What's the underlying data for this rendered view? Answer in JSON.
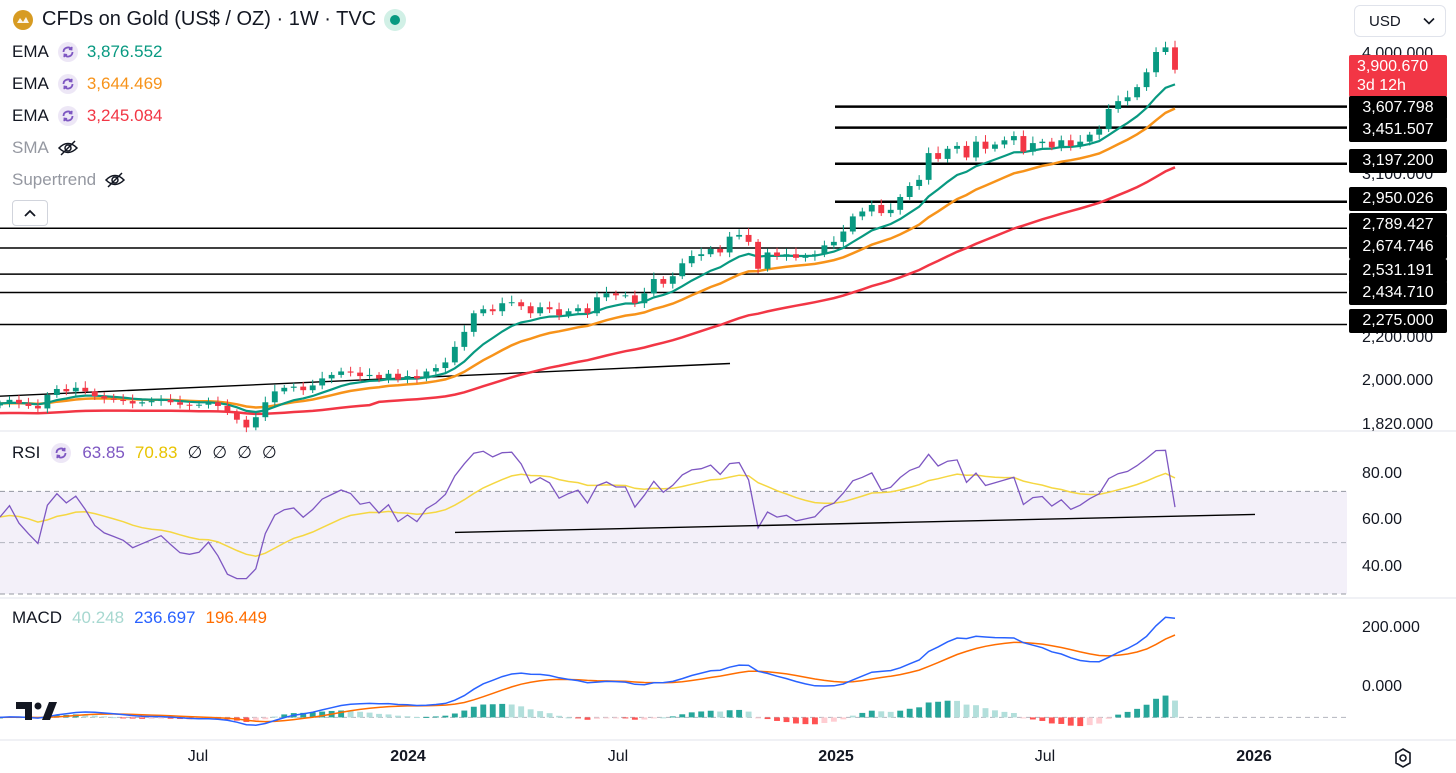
{
  "header": {
    "symbol_title": "CFDs on Gold (US$ / OZ) · 1W · TVC",
    "currency": "USD",
    "indicators": [
      {
        "name": "EMA",
        "value": "3,876.552",
        "color": "#089981",
        "visible": true
      },
      {
        "name": "EMA",
        "value": "3,644.469",
        "color": "#f7931a",
        "visible": true
      },
      {
        "name": "EMA",
        "value": "3,245.084",
        "color": "#f23645",
        "visible": true
      },
      {
        "name": "SMA",
        "visible": false
      },
      {
        "name": "Supertrend",
        "visible": false
      }
    ]
  },
  "price_axis": {
    "ticks": [
      "4,000.000",
      "3,100.000",
      "2,200.000",
      "2,000.000",
      "1,820.000"
    ],
    "last_price": "3,900.670",
    "countdown": "3d 12h",
    "level_tags": [
      "3,607.798",
      "3,451.507",
      "3,197.200",
      "2,950.026",
      "2,789.427",
      "2,674.746",
      "2,531.191",
      "2,434.710",
      "2,275.000"
    ]
  },
  "time_axis": {
    "labels": [
      {
        "text": "Jul",
        "bold": false
      },
      {
        "text": "2024",
        "bold": true
      },
      {
        "text": "Jul",
        "bold": false
      },
      {
        "text": "2025",
        "bold": true
      },
      {
        "text": "Jul",
        "bold": false
      },
      {
        "text": "2026",
        "bold": true
      }
    ]
  },
  "rsi": {
    "name": "RSI",
    "value": "63.85",
    "ma_value": "70.83",
    "extra": [
      "∅",
      "∅",
      "∅",
      "∅"
    ],
    "ticks": [
      "80.00",
      "60.00",
      "40.00"
    ]
  },
  "macd": {
    "name": "MACD",
    "histogram": "40.248",
    "macd_line": "236.697",
    "signal": "196.449",
    "ticks": [
      "200.000",
      "0.000"
    ]
  },
  "colors": {
    "up": "#089981",
    "down": "#f23645",
    "ema_short": "#089981",
    "ema_mid": "#f7931a",
    "ema_long": "#f23645",
    "rsi_line": "#7e57c2",
    "rsi_ma": "#f5d742",
    "macd_line": "#2962ff",
    "signal_line": "#ff6d00"
  },
  "chart_data": {
    "type": "candlestick",
    "title": "CFDs on Gold (US$ / OZ) · 1W · TVC",
    "interval": "1W",
    "price_range": [
      1820,
      4050
    ],
    "horizontal_levels": [
      3607.798,
      3451.507,
      3197.2,
      2950.026,
      2789.427,
      2674.746,
      2531.191,
      2434.71,
      2275.0
    ],
    "closes": [
      1925,
      1940,
      1925,
      1915,
      1905,
      1960,
      1985,
      1975,
      1990,
      1975,
      1955,
      1945,
      1940,
      1935,
      1925,
      1930,
      1935,
      1940,
      1930,
      1920,
      1918,
      1920,
      1930,
      1915,
      1890,
      1860,
      1830,
      1870,
      1930,
      1975,
      1990,
      1995,
      1980,
      2000,
      2030,
      2045,
      2060,
      2055,
      2040,
      2045,
      2030,
      2050,
      2025,
      2040,
      2030,
      2060,
      2075,
      2100,
      2170,
      2240,
      2330,
      2350,
      2340,
      2380,
      2385,
      2365,
      2330,
      2360,
      2350,
      2320,
      2340,
      2355,
      2330,
      2410,
      2430,
      2420,
      2420,
      2380,
      2430,
      2505,
      2480,
      2520,
      2590,
      2630,
      2640,
      2670,
      2650,
      2740,
      2750,
      2710,
      2560,
      2650,
      2630,
      2640,
      2620,
      2630,
      2640,
      2690,
      2710,
      2770,
      2860,
      2890,
      2930,
      2880,
      2900,
      2980,
      3050,
      3090,
      3270,
      3230,
      3300,
      3320,
      3240,
      3350,
      3300,
      3330,
      3360,
      3390,
      3280,
      3340,
      3350,
      3310,
      3360,
      3320,
      3350,
      3400,
      3440,
      3590,
      3650,
      3680,
      3760,
      3880,
      4050,
      4090,
      3900.67
    ],
    "ema_short_last": 3876.552,
    "ema_mid_last": 3644.469,
    "ema_long_last": 3245.084,
    "rsi_last": 63.85,
    "rsi_ma_last": 70.83,
    "rsi_range": [
      30,
      90
    ],
    "rsi_bands": [
      70,
      30
    ],
    "macd_last": 236.697,
    "signal_last": 196.449,
    "histogram_last": 40.248,
    "macd_range": [
      -30,
      280
    ],
    "x_labels": [
      "Jul",
      "2024",
      "Jul",
      "2025",
      "Jul",
      "2026"
    ]
  }
}
